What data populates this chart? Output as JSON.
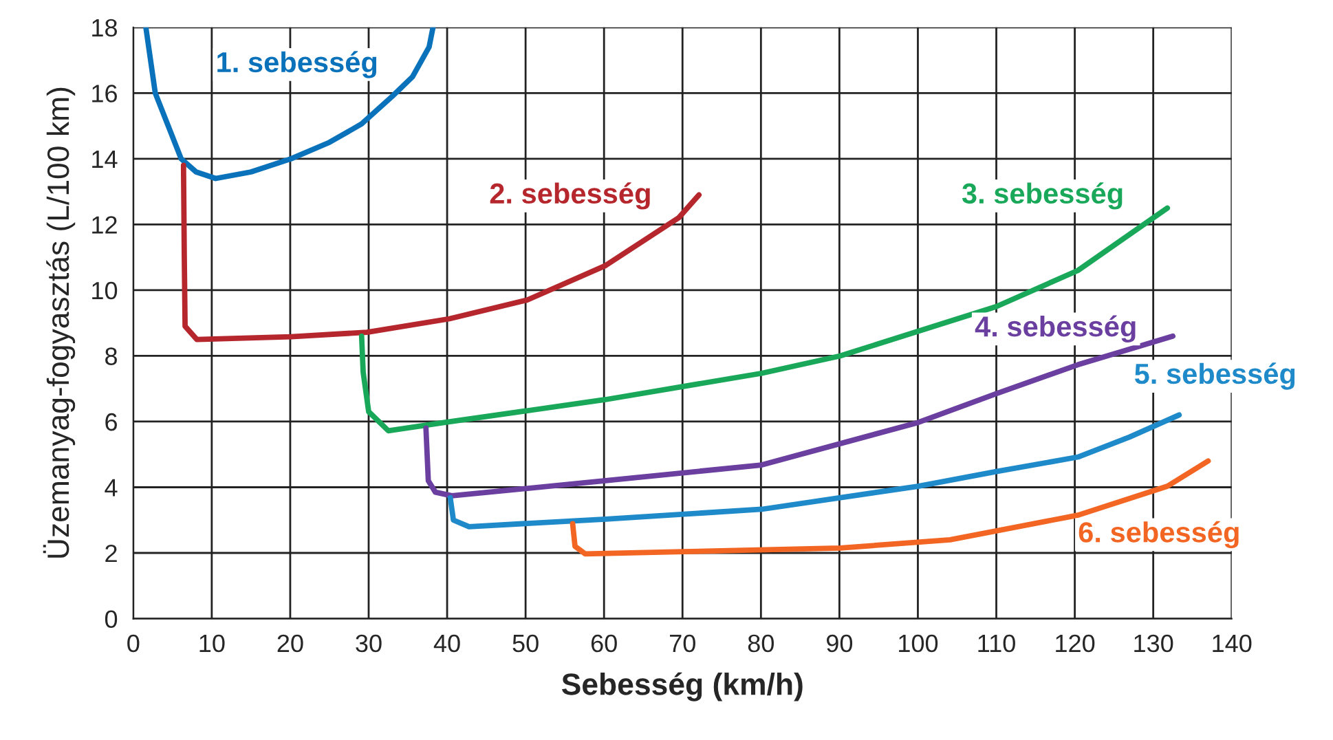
{
  "chart_data": {
    "type": "line",
    "xlabel": "Sebesség (km/h)",
    "ylabel": "Üzemanyag-fogyasztás (L/100 km)",
    "xlim": [
      0,
      140
    ],
    "ylim": [
      0,
      18
    ],
    "xticks": [
      0,
      10,
      20,
      30,
      40,
      50,
      60,
      70,
      80,
      90,
      100,
      110,
      120,
      130,
      140
    ],
    "yticks": [
      0,
      2,
      4,
      6,
      8,
      10,
      12,
      14,
      16,
      18
    ],
    "grid": true,
    "legend": false,
    "marker": "none",
    "line_style": "solid",
    "series": [
      {
        "name": "1. sebesség",
        "color": "#0a72ba",
        "x": [
          1.6,
          2.8,
          6.1,
          8,
          10.5,
          15,
          20.1,
          25,
          29.1,
          33,
          35.6,
          37.7,
          38.2
        ],
        "values": [
          18,
          16,
          14,
          13.6,
          13.4,
          13.6,
          14.0,
          14.5,
          15.06,
          15.9,
          16.5,
          17.4,
          18
        ]
      },
      {
        "name": "2. sebesség",
        "color": "#b5272d",
        "x": [
          6.4,
          6.5,
          6.6,
          8.1,
          20.1,
          29.8,
          40.3,
          50.2,
          60.2,
          69.5,
          72.1
        ],
        "values": [
          13.8,
          11,
          8.9,
          8.5,
          8.58,
          8.72,
          9.13,
          9.7,
          10.75,
          12.2,
          12.9
        ]
      },
      {
        "name": "3. sebesség",
        "color": "#19a85a",
        "x": [
          29.1,
          29.3,
          30,
          32.5,
          39.9,
          60.2,
          80.1,
          90.1,
          110,
          120.4,
          131.8
        ],
        "values": [
          8.6,
          7.5,
          6.3,
          5.72,
          5.98,
          6.67,
          7.47,
          8.0,
          9.5,
          10.6,
          12.5
        ]
      },
      {
        "name": "4. sebesség",
        "color": "#6a3fa0",
        "x": [
          37.3,
          37.6,
          38.5,
          40.6,
          60.2,
          80.1,
          100,
          110,
          120.4,
          132.5
        ],
        "values": [
          5.8,
          4.2,
          3.85,
          3.74,
          4.2,
          4.68,
          5.97,
          6.85,
          7.73,
          8.6
        ]
      },
      {
        "name": "5. sebesség",
        "color": "#1f8ac9",
        "x": [
          40.4,
          40.8,
          42.8,
          60.2,
          80.1,
          100,
          110,
          120.4,
          127,
          133.3
        ],
        "values": [
          3.68,
          3.0,
          2.8,
          3.03,
          3.33,
          4.03,
          4.48,
          4.92,
          5.53,
          6.2
        ]
      },
      {
        "name": "6. sebesség",
        "color": "#f26522",
        "x": [
          56,
          56.3,
          57.6,
          70.1,
          90.1,
          104.1,
          120.4,
          131.8,
          137
        ],
        "values": [
          2.89,
          2.2,
          1.97,
          2.04,
          2.15,
          2.4,
          3.15,
          4.03,
          4.8
        ]
      }
    ]
  }
}
